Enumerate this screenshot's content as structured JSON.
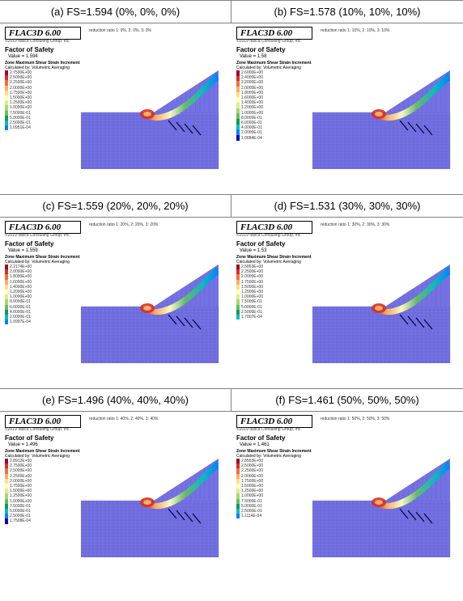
{
  "software": "FLAC3D 6.00",
  "copyright": "©2019 Itasca Consulting Group, Inc.",
  "fos_heading": "Factor of Safety",
  "strain_heading": "Zone Maximum Shear Strain Increment",
  "strain_sub": "Calculated by: Volumetric Averaging",
  "panels": [
    {
      "caption": "(a) FS=1.594 (0%, 0%, 0%)",
      "reduction": "reduction ratio 1: 0%, 2: 0%, 3: 0%",
      "fs": "Value = 1.594",
      "legend": [
        "2.7500E+00",
        "2.5000E+00",
        "2.2500E+00",
        "2.0000E+00",
        "1.7500E+00",
        "1.5000E+00",
        "1.2500E+00",
        "1.0000E+00",
        "7.5000E-01",
        "5.0000E-01",
        "2.5000E-01",
        "1.0951E-04"
      ]
    },
    {
      "caption": "(b) FS=1.578 (10%, 10%, 10%)",
      "reduction": "reduction ratio 1: 10%, 2: 10%, 3: 10%",
      "fs": "Value = 1.58",
      "legend": [
        "2.6000E+00",
        "2.4000E+00",
        "2.2000E+00",
        "2.0000E+00",
        "1.8000E+00",
        "1.6000E+00",
        "1.4000E+00",
        "1.2000E+00",
        "1.0000E+00",
        "8.0000E-01",
        "6.0000E-01",
        "4.0000E-01",
        "2.0000E-01",
        "1.0684E-04"
      ]
    },
    {
      "caption": "(c) FS=1.559 (20%, 20%, 20%)",
      "reduction": "reduction ratio 1: 20%, 2: 20%, 3: 20%",
      "fs": "Value = 1.559",
      "legend": [
        "2.2174E+00",
        "2.0000E+00",
        "1.8000E+00",
        "1.6000E+00",
        "1.4000E+00",
        "1.2000E+00",
        "1.0000E+00",
        "8.0000E-01",
        "6.0000E-01",
        "4.0000E-01",
        "2.0000E-01",
        "1.0997E-04"
      ]
    },
    {
      "caption": "(d) FS=1.531 (30%, 30%, 30%)",
      "reduction": "reduction ratio 1: 30%, 2: 30%, 3: 30%",
      "fs": "Value = 1.53",
      "legend": [
        "2.5853E+00",
        "2.2500E+00",
        "2.0000E+00",
        "1.7500E+00",
        "1.5000E+00",
        "1.2500E+00",
        "1.0000E+00",
        "7.5000E-01",
        "5.0000E-01",
        "2.5000E-01",
        "1.7007E-04"
      ]
    },
    {
      "caption": "(e) FS=1.496 (40%, 40%, 40%)",
      "reduction": "reduction ratio 1: 40%, 2: 40%, 3: 40%",
      "fs": "Value = 1.496",
      "legend": [
        "2.8912E+00",
        "2.7500E+00",
        "2.5000E+00",
        "2.2500E+00",
        "2.0000E+00",
        "1.7500E+00",
        "1.5000E+00",
        "1.2500E+00",
        "1.0000E+00",
        "7.5000E-01",
        "5.0000E-01",
        "2.5000E-01",
        "1.7508E-04"
      ]
    },
    {
      "caption": "(f) FS=1.461 (50%, 50%, 50%)",
      "reduction": "reduction ratio 1: 50%, 2: 50%, 3: 50%",
      "fs": "Value = 1.461",
      "legend": [
        "2.8553E+00",
        "2.5000E+00",
        "2.2500E+00",
        "2.0000E+00",
        "1.7500E+00",
        "1.5000E+00",
        "1.2500E+00",
        "1.0000E+00",
        "7.5000E-01",
        "5.0000E-01",
        "2.5000E-01",
        "1.1114E-04"
      ]
    }
  ],
  "colorscale": [
    "#a50026",
    "#d73027",
    "#f46d43",
    "#fdae61",
    "#fee08b",
    "#ffffbf",
    "#d9ef8b",
    "#a6d96a",
    "#66bd63",
    "#1a9850",
    "#00bfbf",
    "#0080ff",
    "#0000c0"
  ],
  "sim_bg": "#7472e3",
  "sim_mesh": "#5a58c4"
}
